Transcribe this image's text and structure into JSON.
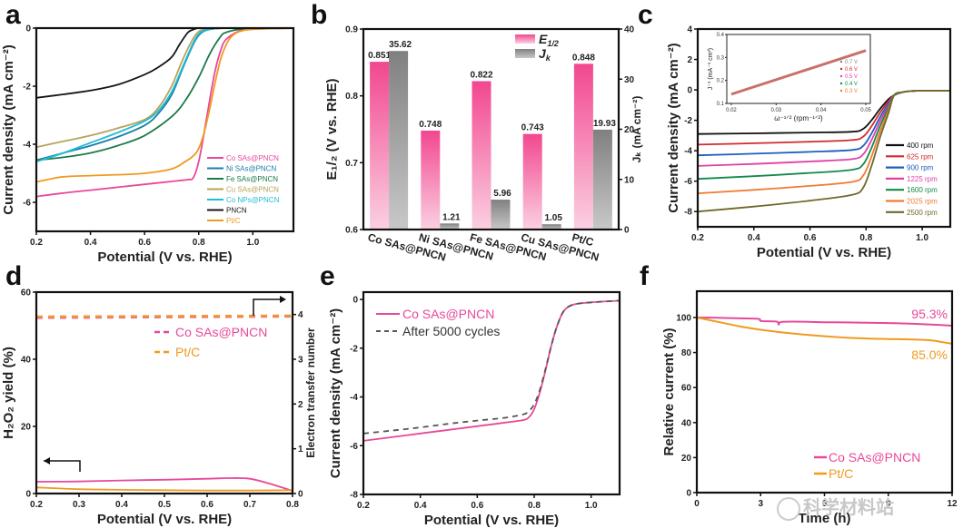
{
  "chart_data": [
    {
      "panel": "a",
      "type": "line",
      "xlabel": "Potential (V vs. RHE)",
      "ylabel": "Current density (mA cm⁻²)",
      "xlim": [
        0.2,
        1.15
      ],
      "ylim": [
        -7,
        0
      ],
      "xticks": [
        0.2,
        0.4,
        0.6,
        0.8,
        1.0
      ],
      "xtick_labels": [
        "0.2",
        "0.4",
        "0.6",
        "0.8",
        "1.0"
      ],
      "yticks": [
        0,
        -2,
        -4,
        -6
      ],
      "ytick_labels": [
        "0",
        "-2",
        "-4",
        "-6"
      ],
      "legend_position": "bottom-right",
      "series": [
        {
          "name": "Co SAs@PNCN",
          "color": "#e8489a",
          "x": [
            0.2,
            0.3,
            0.4,
            0.5,
            0.6,
            0.7,
            0.76,
            0.78,
            0.8,
            0.82,
            0.84,
            0.86,
            0.88,
            0.9,
            0.95,
            1.0,
            1.15
          ],
          "y": [
            -5.8,
            -5.68,
            -5.58,
            -5.48,
            -5.38,
            -5.28,
            -5.22,
            -5.15,
            -4.6,
            -3.6,
            -2.5,
            -1.5,
            -0.8,
            -0.4,
            -0.1,
            -0.03,
            0
          ]
        },
        {
          "name": "Ni SAs@PNCN",
          "color": "#1a7fa8",
          "x": [
            0.2,
            0.3,
            0.4,
            0.5,
            0.6,
            0.65,
            0.7,
            0.74,
            0.78,
            0.8,
            0.82,
            0.85,
            0.9,
            1.0,
            1.15
          ],
          "y": [
            -4.55,
            -4.3,
            -4.05,
            -3.75,
            -3.35,
            -2.95,
            -2.3,
            -1.4,
            -0.55,
            -0.25,
            -0.1,
            -0.03,
            0,
            0,
            0
          ]
        },
        {
          "name": "Fe SAs@PNCN",
          "color": "#1b7a4a",
          "x": [
            0.2,
            0.3,
            0.4,
            0.5,
            0.6,
            0.7,
            0.75,
            0.8,
            0.84,
            0.88,
            0.9,
            0.95,
            1.0,
            1.15
          ],
          "y": [
            -4.55,
            -4.45,
            -4.3,
            -4.05,
            -3.7,
            -3.05,
            -2.5,
            -1.7,
            -0.9,
            -0.3,
            -0.15,
            -0.04,
            0,
            0
          ]
        },
        {
          "name": "Cu SAs@PNCN",
          "color": "#b7a35a",
          "x": [
            0.2,
            0.3,
            0.4,
            0.5,
            0.6,
            0.65,
            0.7,
            0.74,
            0.78,
            0.8,
            0.82,
            0.85,
            0.9,
            1.0,
            1.15
          ],
          "y": [
            -4.1,
            -3.9,
            -3.7,
            -3.45,
            -3.15,
            -2.75,
            -2.0,
            -1.1,
            -0.35,
            -0.12,
            -0.05,
            -0.02,
            0,
            0,
            0
          ]
        },
        {
          "name": "Co NPs@PNCN",
          "color": "#20bcd6",
          "x": [
            0.2,
            0.3,
            0.4,
            0.5,
            0.6,
            0.65,
            0.7,
            0.74,
            0.78,
            0.8,
            0.82,
            0.85,
            0.9,
            1.0,
            1.15
          ],
          "y": [
            -4.6,
            -4.3,
            -3.95,
            -3.6,
            -3.2,
            -2.85,
            -2.2,
            -1.35,
            -0.5,
            -0.2,
            -0.08,
            -0.02,
            0,
            0,
            0
          ]
        },
        {
          "name": "PNCN",
          "color": "#151515",
          "x": [
            0.2,
            0.3,
            0.4,
            0.5,
            0.6,
            0.65,
            0.7,
            0.73,
            0.76,
            0.78,
            0.8,
            0.85,
            1.0,
            1.15
          ],
          "y": [
            -2.4,
            -2.28,
            -2.15,
            -1.95,
            -1.6,
            -1.35,
            -1.0,
            -0.55,
            -0.15,
            -0.05,
            0,
            0,
            0,
            0
          ]
        },
        {
          "name": "Pt/C",
          "color": "#f09a20",
          "x": [
            0.2,
            0.25,
            0.3,
            0.4,
            0.5,
            0.6,
            0.7,
            0.75,
            0.78,
            0.8,
            0.82,
            0.84,
            0.86,
            0.88,
            0.9,
            0.92,
            0.95,
            1.0,
            1.15
          ],
          "y": [
            -5.3,
            -5.2,
            -5.12,
            -5.08,
            -5.05,
            -5.0,
            -4.85,
            -4.6,
            -4.4,
            -4.15,
            -3.6,
            -2.8,
            -1.9,
            -1.1,
            -0.6,
            -0.3,
            -0.12,
            -0.04,
            0
          ]
        }
      ]
    },
    {
      "panel": "b",
      "type": "bar",
      "categories": [
        "Co SAs@PNCN",
        "Ni SAs@PNCN",
        "Fe SAs@PNCN",
        "Cu SAs@PNCN",
        "Pt/C"
      ],
      "ylabel": "E₁/₂ (V vs. RHE)",
      "y2label": "Jₖ (mA cm⁻²)",
      "ylim": [
        0.6,
        0.9
      ],
      "y2lim": [
        0,
        40
      ],
      "yticks": [
        0.6,
        0.7,
        0.8,
        0.9
      ],
      "ytick_labels": [
        "0.6",
        "0.7",
        "0.8",
        "0.9"
      ],
      "y2ticks": [
        0,
        10,
        20,
        30,
        40
      ],
      "y2tick_labels": [
        "0",
        "10",
        "20",
        "30",
        "40"
      ],
      "legend_position": "top-right",
      "series": [
        {
          "name": "E1/2",
          "legend_label": "E",
          "legend_sub": "1/2",
          "axis": "left",
          "color": "#f2478f",
          "values": [
            0.851,
            0.748,
            0.822,
            0.743,
            0.848
          ],
          "labels": [
            "0.851",
            "0.748",
            "0.822",
            "0.743",
            "0.848"
          ]
        },
        {
          "name": "Jk",
          "legend_label": "J",
          "legend_sub": "k",
          "axis": "right",
          "color": "#8a8a8a",
          "values": [
            35.62,
            1.21,
            5.96,
            1.05,
            19.93
          ],
          "labels": [
            "35.62",
            "1.21",
            "5.96",
            "1.05",
            "19.93"
          ]
        }
      ]
    },
    {
      "panel": "c",
      "type": "line",
      "xlabel": "Potential (V vs. RHE)",
      "ylabel": "Current density (mA cm⁻²)",
      "xlim": [
        0.2,
        1.1
      ],
      "ylim": [
        -9,
        4
      ],
      "xticks": [
        0.2,
        0.4,
        0.6,
        0.8,
        1.0
      ],
      "xtick_labels": [
        "0.2",
        "0.4",
        "0.6",
        "0.8",
        "1.0"
      ],
      "yticks": [
        4,
        2,
        0,
        -2,
        -4,
        -6,
        -8
      ],
      "ytick_labels": [
        "4",
        "2",
        "0",
        "-2",
        "-4",
        "-6",
        "-8"
      ],
      "legend_position": "bottom-right",
      "series": [
        {
          "name": "400 rpm",
          "color": "#111111",
          "plateau": [
            -2.9,
            -2.75
          ]
        },
        {
          "name": "625 rpm",
          "color": "#d42a2a",
          "plateau": [
            -3.6,
            -3.3
          ]
        },
        {
          "name": "900 rpm",
          "color": "#1f5fc0",
          "plateau": [
            -4.3,
            -3.95
          ]
        },
        {
          "name": "1225 rpm",
          "color": "#e040a8",
          "plateau": [
            -5.0,
            -4.55
          ]
        },
        {
          "name": "1600 rpm",
          "color": "#138a4a",
          "plateau": [
            -5.85,
            -5.25
          ]
        },
        {
          "name": "2025 rpm",
          "color": "#f07a30",
          "plateau": [
            -6.8,
            -6.05
          ]
        },
        {
          "name": "2500 rpm",
          "color": "#6e6a2a",
          "plateau": [
            -8.0,
            -6.9
          ]
        }
      ],
      "inset": {
        "type": "scatter",
        "xlabel": "ω⁻¹ᐟ² (rpm⁻¹ᐟ²)",
        "ylabel": "J⁻¹ (mA⁻¹ cm²)",
        "xlim": [
          0.019,
          0.051
        ],
        "ylim": [
          0.1,
          0.4
        ],
        "xticks": [
          0.02,
          0.03,
          0.04,
          0.05
        ],
        "xtick_labels": [
          "0.02",
          "0.03",
          "0.04",
          "0.05"
        ],
        "yticks": [
          0.1,
          0.2,
          0.3,
          0.4
        ],
        "ytick_labels": [
          "0.1",
          "0.2",
          "0.3",
          "0.4"
        ],
        "series": [
          {
            "name": "0.7 V",
            "color": "#888888"
          },
          {
            "name": "0.6 V",
            "color": "#d42a2a"
          },
          {
            "name": "0.5 V",
            "color": "#e040a8"
          },
          {
            "name": "0.4 V",
            "color": "#138a4a"
          },
          {
            "name": "0.3 V",
            "color": "#f07a30"
          }
        ],
        "line": {
          "x": [
            0.02,
            0.05
          ],
          "y": [
            0.14,
            0.33
          ]
        }
      }
    },
    {
      "panel": "d",
      "type": "line",
      "xlabel": "Potential (V vs. RHE)",
      "ylabel": "H₂O₂ yield (%)",
      "y2label": "Electron transfer number",
      "xlim": [
        0.2,
        0.8
      ],
      "ylim": [
        0,
        60
      ],
      "y2lim": [
        0,
        4.5
      ],
      "xticks": [
        0.2,
        0.3,
        0.4,
        0.5,
        0.6,
        0.7,
        0.8
      ],
      "xtick_labels": [
        "0.2",
        "0.3",
        "0.4",
        "0.5",
        "0.6",
        "0.7",
        "0.8"
      ],
      "yticks": [
        0,
        20,
        40,
        60
      ],
      "ytick_labels": [
        "0",
        "20",
        "40",
        "60"
      ],
      "y2ticks": [
        0,
        1,
        2,
        3,
        4
      ],
      "y2tick_labels": [
        "0",
        "1",
        "2",
        "3",
        "4"
      ],
      "legend_position": "top-right",
      "series": [
        {
          "name": "Co SAs@PNCN",
          "color": "#e8489a",
          "kind": "H2O2",
          "x": [
            0.2,
            0.3,
            0.4,
            0.5,
            0.6,
            0.65,
            0.7,
            0.75,
            0.8
          ],
          "y": [
            3.5,
            3.6,
            3.9,
            4.1,
            4.4,
            4.6,
            4.4,
            2.8,
            0.8
          ]
        },
        {
          "name": "Pt/C",
          "color": "#f09a20",
          "kind": "H2O2",
          "x": [
            0.2,
            0.3,
            0.4,
            0.5,
            0.6,
            0.7,
            0.8
          ],
          "y": [
            1.8,
            1.3,
            1.1,
            1.0,
            0.9,
            0.9,
            1.0
          ]
        },
        {
          "name": "Co SAs@PNCN",
          "color": "#e8489a",
          "kind": "n",
          "x": [
            0.2,
            0.8
          ],
          "y": [
            3.93,
            3.96
          ]
        },
        {
          "name": "Pt/C",
          "color": "#f09a20",
          "kind": "n",
          "x": [
            0.2,
            0.8
          ],
          "y": [
            3.95,
            3.97
          ]
        }
      ],
      "legend": [
        {
          "name": "Co SAs@PNCN",
          "color": "#e8489a"
        },
        {
          "name": "Pt/C",
          "color": "#f09a20"
        }
      ]
    },
    {
      "panel": "e",
      "type": "line",
      "xlabel": "Potential (V vs. RHE)",
      "ylabel": "Current density (mA cm⁻²)",
      "xlim": [
        0.2,
        1.1
      ],
      "ylim": [
        -8,
        0.3
      ],
      "xticks": [
        0.2,
        0.4,
        0.6,
        0.8,
        1.0
      ],
      "xtick_labels": [
        "0.2",
        "0.4",
        "0.6",
        "0.8",
        "1.0"
      ],
      "yticks": [
        0,
        -2,
        -4,
        -6,
        -8
      ],
      "ytick_labels": [
        "0",
        "-2",
        "-4",
        "-6",
        "-8"
      ],
      "legend_position": "top-left",
      "series": [
        {
          "name": "Co SAs@PNCN",
          "color": "#e8489a",
          "style": "solid",
          "x": [
            0.2,
            0.3,
            0.4,
            0.5,
            0.6,
            0.7,
            0.76,
            0.78,
            0.8,
            0.82,
            0.84,
            0.86,
            0.88,
            0.9,
            0.92,
            0.95,
            1.0,
            1.1
          ],
          "y": [
            -5.8,
            -5.65,
            -5.5,
            -5.35,
            -5.2,
            -5.05,
            -4.95,
            -4.85,
            -4.5,
            -3.8,
            -2.9,
            -1.9,
            -1.1,
            -0.55,
            -0.3,
            -0.18,
            -0.12,
            -0.05
          ]
        },
        {
          "name": "After 5000 cycles",
          "color": "#555555",
          "style": "dashed",
          "x": [
            0.2,
            0.3,
            0.4,
            0.5,
            0.6,
            0.7,
            0.76,
            0.78,
            0.8,
            0.82,
            0.84,
            0.86,
            0.88,
            0.9,
            0.92,
            0.95,
            1.0,
            1.1
          ],
          "y": [
            -5.5,
            -5.38,
            -5.25,
            -5.1,
            -4.97,
            -4.85,
            -4.72,
            -4.6,
            -4.3,
            -3.7,
            -2.85,
            -1.9,
            -1.1,
            -0.55,
            -0.3,
            -0.18,
            -0.12,
            -0.05
          ]
        }
      ]
    },
    {
      "panel": "f",
      "type": "line",
      "xlabel": "Time (h)",
      "ylabel": "Relative current (%)",
      "xlim": [
        0,
        12
      ],
      "ylim": [
        0,
        115
      ],
      "xticks": [
        0,
        3,
        6,
        9,
        12
      ],
      "xtick_labels": [
        "0",
        "3",
        "6",
        "9",
        "12"
      ],
      "yticks": [
        0,
        20,
        40,
        60,
        80,
        100
      ],
      "ytick_labels": [
        "0",
        "20",
        "40",
        "60",
        "80",
        "100"
      ],
      "legend_position": "bottom-right",
      "annotations": [
        {
          "text": "95.3%",
          "color": "#e8489a"
        },
        {
          "text": "85.0%",
          "color": "#f09a20"
        }
      ],
      "series": [
        {
          "name": "Co SAs@PNCN",
          "color": "#e8489a",
          "x": [
            0,
            1,
            2,
            2.9,
            3.0,
            3.5,
            3.8,
            3.85,
            4,
            5,
            6,
            7,
            8,
            9,
            10,
            11,
            12
          ],
          "y": [
            100,
            99.8,
            99.5,
            99.2,
            98,
            97.8,
            97.5,
            96,
            97.5,
            97.6,
            97.3,
            97.2,
            97,
            96.8,
            96.5,
            96,
            95.3
          ]
        },
        {
          "name": "Pt/C",
          "color": "#f09a20",
          "x": [
            0,
            1,
            2,
            3,
            4,
            5,
            6,
            7,
            8,
            9,
            10,
            11,
            11.5,
            12
          ],
          "y": [
            100,
            97.5,
            95,
            93,
            91.5,
            90.3,
            89.3,
            88.5,
            88,
            87.7,
            87.5,
            87,
            86,
            85
          ]
        }
      ]
    }
  ],
  "watermark": "科学材料站",
  "panel_letters": [
    "a",
    "b",
    "c",
    "d",
    "e",
    "f"
  ]
}
